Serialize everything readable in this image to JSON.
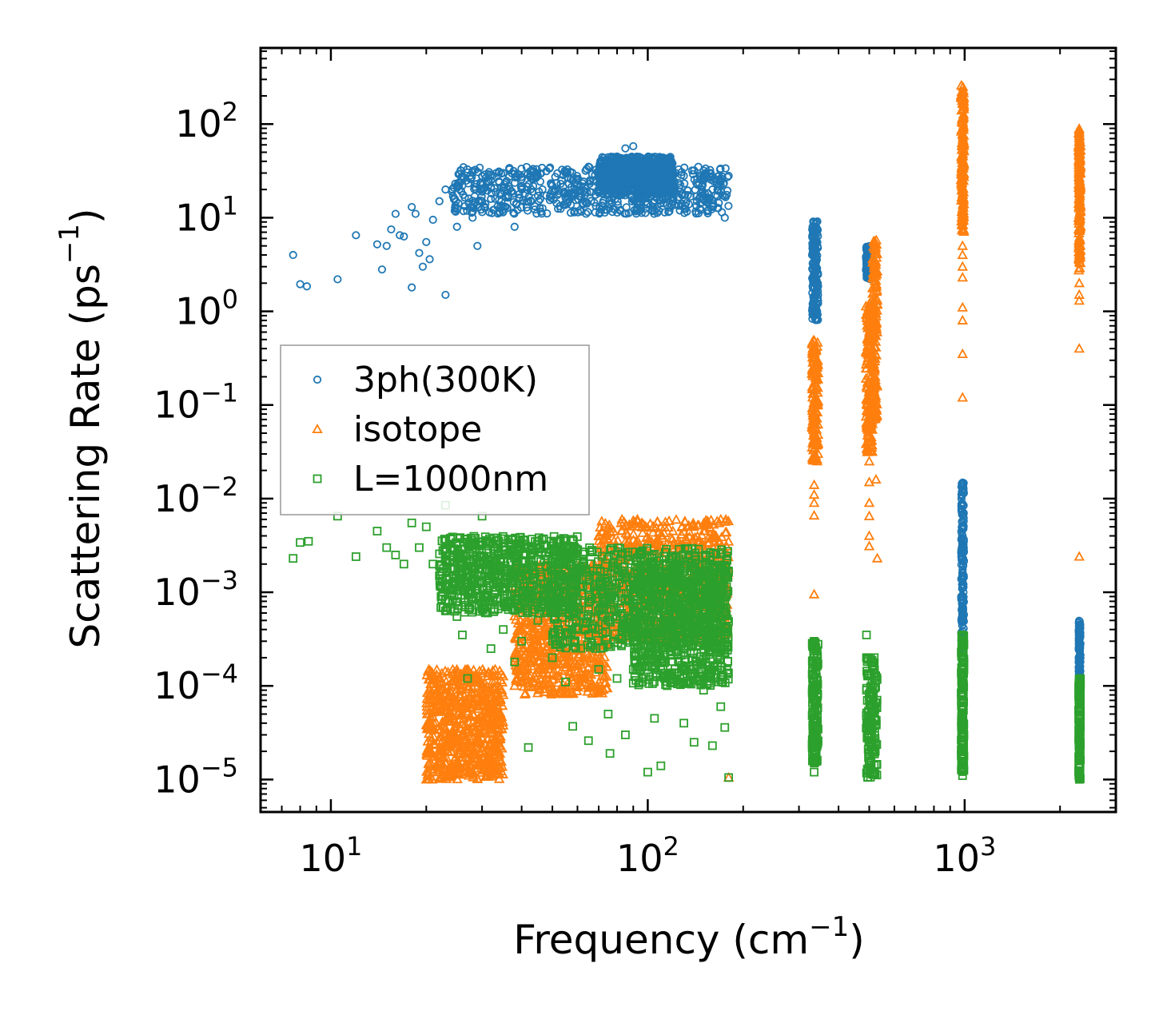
{
  "chart_data": {
    "type": "scatter",
    "title": "",
    "xlabel": "Frequency (cm",
    "xlabel_exp": "−1",
    "xlabel_close": ")",
    "ylabel": "Scattering Rate (ps",
    "ylabel_exp": "−1",
    "ylabel_close": ")",
    "xscale": "log",
    "yscale": "log",
    "xlim": [
      6.0,
      3000
    ],
    "ylim": [
      4.5e-06,
      650
    ],
    "x_ticks": [
      {
        "value": 10,
        "base": "10",
        "exp": "1"
      },
      {
        "value": 100,
        "base": "10",
        "exp": "2"
      },
      {
        "value": 1000,
        "base": "10",
        "exp": "3"
      }
    ],
    "y_ticks": [
      {
        "value": 100,
        "base": "10",
        "exp": "2"
      },
      {
        "value": 10,
        "base": "10",
        "exp": "1"
      },
      {
        "value": 1,
        "base": "10",
        "exp": "0"
      },
      {
        "value": 0.1,
        "base": "10",
        "exp": "−1"
      },
      {
        "value": 0.01,
        "base": "10",
        "exp": "−2"
      },
      {
        "value": 0.001,
        "base": "10",
        "exp": "−3"
      },
      {
        "value": 0.0001,
        "base": "10",
        "exp": "−4"
      },
      {
        "value": 1e-05,
        "base": "10",
        "exp": "−5"
      }
    ],
    "legend_position": "center-left",
    "series": [
      {
        "name": "3ph(300K)",
        "marker": "circle",
        "color": "#1f77b4",
        "points": [
          [
            7.6,
            4.0
          ],
          [
            8.0,
            1.95
          ],
          [
            8.4,
            1.85
          ],
          [
            10.5,
            2.2
          ],
          [
            12.0,
            6.5
          ],
          [
            14.0,
            5.2
          ],
          [
            14.5,
            2.8
          ],
          [
            15.0,
            5.0
          ],
          [
            15.5,
            7.5
          ],
          [
            16.0,
            11.0
          ],
          [
            16.5,
            6.5
          ],
          [
            17.0,
            6.3
          ],
          [
            18.0,
            13.0
          ],
          [
            18.0,
            1.8
          ],
          [
            18.5,
            11.0
          ],
          [
            19.0,
            4.2
          ],
          [
            19.5,
            3.0
          ],
          [
            20.0,
            5.5
          ],
          [
            20.5,
            3.6
          ],
          [
            21.0,
            9.5
          ],
          [
            22.0,
            15.0
          ],
          [
            23.0,
            20.0
          ],
          [
            23.0,
            1.5
          ],
          [
            25.0,
            8.0
          ],
          [
            26.0,
            22.0
          ],
          [
            28.0,
            10.0
          ],
          [
            29.0,
            5.0
          ],
          [
            30.0,
            15.0
          ],
          [
            32.0,
            25.0
          ],
          [
            35.0,
            30.0
          ],
          [
            38.0,
            8.0
          ],
          [
            40.0,
            20.0
          ],
          [
            45.0,
            28.0
          ],
          [
            50.0,
            22.0
          ],
          [
            55.0,
            30.0
          ],
          [
            60.0,
            25.0
          ],
          [
            65.0,
            35.0
          ],
          [
            70.0,
            28.0
          ],
          [
            75.0,
            18.0
          ],
          [
            80.0,
            45.0
          ],
          [
            85.0,
            55.0
          ],
          [
            90.0,
            58.0
          ],
          [
            95.0,
            35.0
          ],
          [
            100.0,
            40.0
          ],
          [
            105.0,
            42.0
          ],
          [
            110.0,
            25.0
          ],
          [
            120.0,
            30.0
          ],
          [
            130.0,
            28.0
          ],
          [
            140.0,
            32.0
          ],
          [
            150.0,
            25.0
          ],
          [
            160.0,
            20.0
          ],
          [
            170.0,
            22.0
          ],
          [
            175.0,
            10.0
          ],
          [
            180.0,
            28.0
          ]
        ],
        "bands": [
          {
            "x0": 24,
            "x1": 180,
            "y0": 11,
            "y1": 35
          },
          {
            "x0": 70,
            "x1": 120,
            "y0": 18,
            "y1": 45
          },
          {
            "x0": 330,
            "x1": 345,
            "y0": 0.8,
            "y1": 9.2
          },
          {
            "x0": 488,
            "x1": 512,
            "y0": 2.2,
            "y1": 5.0
          },
          {
            "x0": 975,
            "x1": 995,
            "y0": 0.00025,
            "y1": 0.015
          },
          {
            "x0": 2290,
            "x1": 2320,
            "y0": 7e-05,
            "y1": 0.0005
          }
        ]
      },
      {
        "name": "isotope",
        "marker": "triangle",
        "color": "#ff7f0e",
        "points": [
          [
            20.0,
            1e-05
          ],
          [
            21.0,
            1.2e-05
          ],
          [
            22.0,
            1.5e-05
          ],
          [
            24.0,
            2e-05
          ],
          [
            26.0,
            3e-05
          ],
          [
            28.0,
            5e-05
          ],
          [
            30.0,
            8e-05
          ],
          [
            33.0,
            0.00015
          ],
          [
            35.0,
            8e-05
          ],
          [
            38.0,
            0.0001
          ],
          [
            40.0,
            0.00015
          ],
          [
            45.0,
            0.0003
          ],
          [
            50.0,
            0.0004
          ],
          [
            55.0,
            0.0006
          ],
          [
            60.0,
            0.001
          ],
          [
            65.0,
            0.0015
          ],
          [
            70.0,
            0.004
          ],
          [
            75.0,
            0.005
          ],
          [
            80.0,
            0.002
          ],
          [
            90.0,
            0.003
          ],
          [
            100.0,
            0.0035
          ],
          [
            110.0,
            0.005
          ],
          [
            120.0,
            0.0045
          ],
          [
            130.0,
            0.003
          ],
          [
            140.0,
            0.005
          ],
          [
            150.0,
            0.0045
          ],
          [
            170.0,
            0.006
          ],
          [
            180.0,
            1.05e-05
          ],
          [
            335,
            0.014
          ],
          [
            335,
            0.011
          ],
          [
            335,
            0.009
          ],
          [
            335,
            0.0066
          ],
          [
            335,
            0.00095
          ],
          [
            500,
            0.025
          ],
          [
            500,
            0.015
          ],
          [
            500,
            0.009
          ],
          [
            500,
            0.0065
          ],
          [
            500,
            0.004
          ],
          [
            500,
            0.0031
          ],
          [
            525,
            0.016
          ],
          [
            530,
            0.0023
          ],
          [
            985,
            5.0
          ],
          [
            985,
            4.0
          ],
          [
            985,
            3.0
          ],
          [
            985,
            2.3
          ],
          [
            985,
            1.1
          ],
          [
            985,
            0.8
          ],
          [
            985,
            0.35
          ],
          [
            985,
            0.12
          ],
          [
            2300,
            2.0
          ],
          [
            2300,
            1.5
          ],
          [
            2300,
            1.3
          ],
          [
            2300,
            0.4
          ],
          [
            2300,
            0.0024
          ]
        ],
        "bands": [
          {
            "x0": 20,
            "x1": 35,
            "y0": 1e-05,
            "y1": 0.00015
          },
          {
            "x0": 38,
            "x1": 75,
            "y0": 8e-05,
            "y1": 0.002
          },
          {
            "x0": 70,
            "x1": 180,
            "y0": 0.0003,
            "y1": 0.006
          },
          {
            "x0": 330,
            "x1": 345,
            "y0": 0.025,
            "y1": 0.5
          },
          {
            "x0": 488,
            "x1": 512,
            "y0": 0.03,
            "y1": 1.2
          },
          {
            "x0": 512,
            "x1": 530,
            "y0": 0.07,
            "y1": 6.0
          },
          {
            "x0": 975,
            "x1": 995,
            "y0": 7.0,
            "y1": 270
          },
          {
            "x0": 2290,
            "x1": 2320,
            "y0": 2.5,
            "y1": 95
          }
        ]
      },
      {
        "name": "L=1000nm",
        "marker": "square",
        "color": "#2ca02c",
        "points": [
          [
            7.6,
            0.0023
          ],
          [
            8.0,
            0.0034
          ],
          [
            8.5,
            0.0035
          ],
          [
            10.5,
            0.0065
          ],
          [
            12.0,
            0.0024
          ],
          [
            14.0,
            0.0045
          ],
          [
            15.0,
            0.003
          ],
          [
            16.0,
            0.0025
          ],
          [
            17.0,
            0.002
          ],
          [
            18.0,
            0.0055
          ],
          [
            19.0,
            0.003
          ],
          [
            20.0,
            0.005
          ],
          [
            21.0,
            0.002
          ],
          [
            22.0,
            0.0015
          ],
          [
            23.0,
            0.0085
          ],
          [
            24.0,
            0.003
          ],
          [
            25.0,
            0.00055
          ],
          [
            26.0,
            0.00035
          ],
          [
            27.0,
            0.00012
          ],
          [
            28.0,
            0.003
          ],
          [
            30.0,
            0.0065
          ],
          [
            32.0,
            0.00025
          ],
          [
            35.0,
            0.0004
          ],
          [
            38.0,
            0.00018
          ],
          [
            40.0,
            0.0003
          ],
          [
            42.0,
            2.2e-05
          ],
          [
            45.0,
            0.0005
          ],
          [
            50.0,
            0.0002
          ],
          [
            55.0,
            0.00011
          ],
          [
            58.0,
            3.7e-05
          ],
          [
            60.0,
            0.0004
          ],
          [
            65.0,
            2.6e-05
          ],
          [
            70.0,
            0.00015
          ],
          [
            75.0,
            5e-05
          ],
          [
            76.0,
            1.9e-05
          ],
          [
            80.0,
            0.00012
          ],
          [
            85.0,
            3e-05
          ],
          [
            90.0,
            0.00015
          ],
          [
            100.0,
            1.2e-05
          ],
          [
            105.0,
            4.5e-05
          ],
          [
            110.0,
            1.4e-05
          ],
          [
            120.0,
            0.00012
          ],
          [
            130.0,
            4e-05
          ],
          [
            140.0,
            2.5e-05
          ],
          [
            150.0,
            9e-05
          ],
          [
            160.0,
            2.3e-05
          ],
          [
            170.0,
            6e-05
          ],
          [
            175.0,
            3.6e-05
          ],
          [
            180.0,
            1.05e-05
          ],
          [
            335,
            1.5e-05
          ],
          [
            335,
            1.2e-05
          ],
          [
            490,
            0.00035
          ],
          [
            490,
            0.0002
          ],
          [
            985,
            1.4e-05
          ],
          [
            985,
            1.1e-05
          ]
        ],
        "bands": [
          {
            "x0": 22,
            "x1": 60,
            "y0": 0.0006,
            "y1": 0.004
          },
          {
            "x0": 50,
            "x1": 180,
            "y0": 0.00025,
            "y1": 0.003
          },
          {
            "x0": 90,
            "x1": 180,
            "y0": 0.0001,
            "y1": 0.002
          },
          {
            "x0": 330,
            "x1": 345,
            "y0": 1.5e-05,
            "y1": 0.0003
          },
          {
            "x0": 488,
            "x1": 530,
            "y0": 1e-05,
            "y1": 0.00022
          },
          {
            "x0": 975,
            "x1": 995,
            "y0": 1.1e-05,
            "y1": 0.00035
          },
          {
            "x0": 2290,
            "x1": 2320,
            "y0": 1e-05,
            "y1": 0.00012
          }
        ]
      }
    ]
  }
}
